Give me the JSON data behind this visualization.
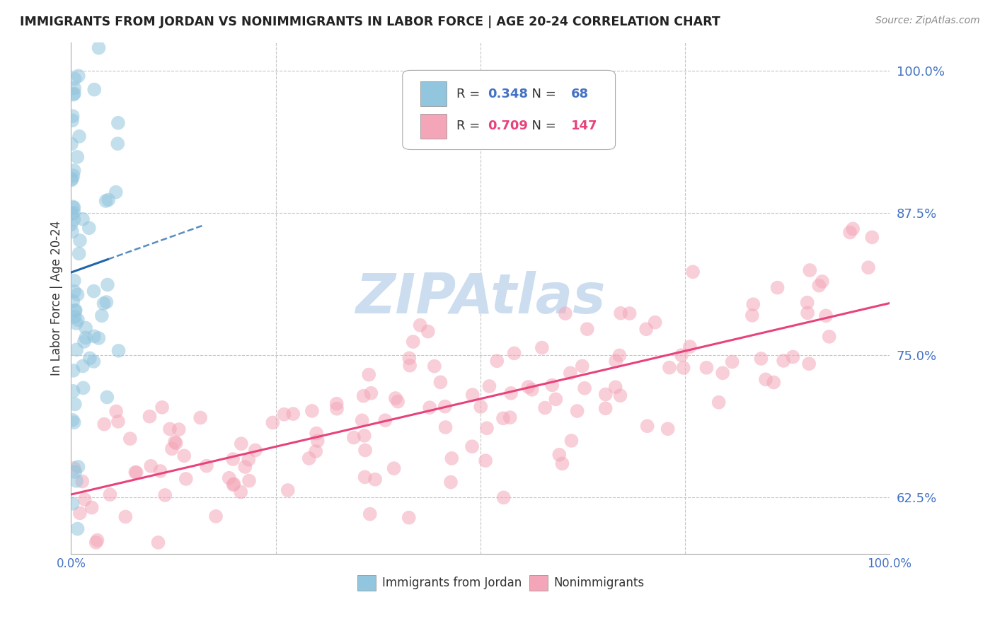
{
  "title": "IMMIGRANTS FROM JORDAN VS NONIMMIGRANTS IN LABOR FORCE | AGE 20-24 CORRELATION CHART",
  "source": "Source: ZipAtlas.com",
  "ylabel": "In Labor Force | Age 20-24",
  "xlim": [
    0.0,
    1.0
  ],
  "ylim": [
    0.575,
    1.025
  ],
  "ytick_right_values": [
    0.625,
    0.75,
    0.875,
    1.0
  ],
  "ytick_right_labels": [
    "62.5%",
    "75.0%",
    "87.5%",
    "100.0%"
  ],
  "legend_labels": [
    "Immigrants from Jordan",
    "Nonimmigrants"
  ],
  "legend_r_values": [
    "0.348",
    "0.709"
  ],
  "legend_n_values": [
    "68",
    "147"
  ],
  "blue_color": "#92c5de",
  "blue_line_color": "#2166ac",
  "pink_color": "#f4a6b8",
  "pink_line_color": "#e8427c",
  "watermark_text": "ZIPAtlas",
  "watermark_color": "#ccddf0",
  "background_color": "#ffffff",
  "grid_color": "#c0c0c0",
  "axis_label_color": "#4472c4",
  "title_color": "#222222",
  "blue_r": 0.348,
  "pink_r": 0.709,
  "blue_n": 68,
  "pink_n": 147
}
